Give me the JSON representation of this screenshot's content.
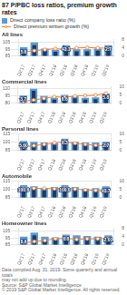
{
  "title": "87 P/PBC loss ratios, premium growth rates",
  "legend": "top",
  "footnote": "Data compiled Aug. 31, 2019. Some quarterly and annual totals\nmay not add up due to rounding.\nSource: S&P Global Market Intelligence\n© 2019 S&P Global Market Intelligence. All rights reserved.",
  "chart_data": [
    {
      "type": "bar",
      "title": "All lines",
      "categories": [
        "Q2'17",
        "Q3'17",
        "Q4'17",
        "Q1'18",
        "Q2'18",
        "Q3'18",
        "Q4'18",
        "Q1'19",
        "Q2'19"
      ],
      "series": [
        {
          "name": "Direct company loss ratio (%)",
          "color": "#5b9bd5",
          "values": [
            98,
            105,
            96,
            94,
            101,
            95,
            95,
            96,
            101
          ]
        },
        {
          "color": "#1f3864",
          "values": [
            94,
            101,
            93,
            91,
            98,
            92,
            92,
            93,
            98
          ]
        },
        {
          "name": "Direct premium written growth (%)",
          "type": "line",
          "axis": "y2",
          "color": "#ed7d31",
          "marker": "circle",
          "values": [
            1.8,
            2.5,
            3.0,
            3.5,
            3.1,
            3.8,
            4.0,
            3.8,
            3.7
          ]
        }
      ],
      "ylim": [
        85,
        110
      ],
      "yticks": [
        85,
        95,
        105
      ],
      "y2lim": [
        0,
        8
      ],
      "y2ticks": [
        0,
        4,
        8
      ],
      "grid": true,
      "annotations": [
        {
          "category": "Q2'17",
          "y": 93.53,
          "text": "5.6"
        },
        {
          "category": "Q2'18",
          "y": 97.51,
          "text": "43.1"
        },
        {
          "category": "Q2'19",
          "y": 97.51,
          "text": "2.7"
        }
      ]
    },
    {
      "type": "bar",
      "title": "Commercial lines",
      "categories": [
        "Q2'17",
        "Q3'17",
        "Q4'17",
        "Q1'18",
        "Q2'18",
        "Q3'18",
        "Q4'18",
        "Q1'19",
        "Q2'19"
      ],
      "series": [
        {
          "name": "Direct company loss ratio (%)",
          "color": "#5b9bd5",
          "values": [
            96,
            110,
            95,
            91,
            97,
            94,
            91,
            92,
            100
          ]
        },
        {
          "color": "#1f3864",
          "values": [
            92,
            106,
            91,
            87,
            93,
            90,
            87,
            88,
            96
          ]
        },
        {
          "name": "Direct premium written growth (%)",
          "type": "line",
          "axis": "y2",
          "color": "#ed7d31",
          "marker": "circle",
          "values": [
            1.0,
            1.8,
            2.8,
            3.8,
            3.5,
            4.2,
            4.5,
            4.8,
            5.8
          ]
        }
      ],
      "ylim": [
        80,
        115
      ],
      "yticks": [
        80,
        95,
        110
      ],
      "y2lim": [
        0,
        10
      ],
      "y2ticks": [
        0,
        5,
        10
      ],
      "grid": true,
      "annotations": [
        {
          "category": "Q2'17",
          "y": 91.54,
          "text": "3.7"
        },
        {
          "category": "Q2'18",
          "y": 92.535,
          "text": "8.6"
        },
        {
          "category": "Q2'19",
          "y": 95.52,
          "text": "5.8"
        }
      ]
    },
    {
      "type": "bar",
      "title": "Personal lines",
      "categories": [
        "Q2'17",
        "Q3'17",
        "Q4'17",
        "Q1'18",
        "Q2'18",
        "Q3'18",
        "Q4'18",
        "Q1'19",
        "Q2'19"
      ],
      "series": [
        {
          "name": "Direct company loss ratio (%)",
          "color": "#5b9bd5",
          "values": [
            102,
            100,
            99,
            98,
            106,
            100,
            99,
            99,
            100
          ]
        },
        {
          "color": "#1f3864",
          "values": [
            98,
            97,
            96,
            95,
            102,
            97,
            96,
            96,
            97
          ]
        },
        {
          "name": "Direct premium written growth (%)",
          "type": "line",
          "axis": "y2",
          "color": "#ed7d31",
          "marker": "circle",
          "values": [
            2.0,
            2.8,
            3.5,
            4.5,
            5.0,
            4.2,
            3.5,
            3.0,
            2.7
          ]
        }
      ],
      "ylim": [
        85,
        115
      ],
      "yticks": [
        85,
        100,
        115
      ],
      "y2lim": [
        0,
        10
      ],
      "y2ticks": [
        0,
        5,
        10
      ],
      "grid": true,
      "annotations": [
        {
          "category": "Q2'17",
          "y": 97.51,
          "text": "5.60"
        },
        {
          "category": "Q2'18",
          "y": 101.49,
          "text": "8.3"
        },
        {
          "category": "Q2'19",
          "y": 96.515,
          "text": "2.7"
        }
      ]
    },
    {
      "type": "bar",
      "title": "Automobile",
      "categories": [
        "Q2'17",
        "Q3'17",
        "Q4'17",
        "Q1'18",
        "Q2'18",
        "Q3'18",
        "Q4'18",
        "Q1'19",
        "Q2'19"
      ],
      "series": [
        {
          "name": "Direct company loss ratio (%)",
          "color": "#5b9bd5",
          "values": [
            107,
            105,
            102,
            104,
            107,
            104,
            101,
            102,
            105
          ]
        },
        {
          "color": "#1f3864",
          "values": [
            103,
            101,
            98,
            100,
            103,
            100,
            97,
            98,
            101
          ]
        },
        {
          "name": "Direct premium written growth (%)",
          "type": "line",
          "axis": "y2",
          "color": "#ed7d31",
          "marker": "circle",
          "values": [
            5.5,
            5.5,
            5.5,
            5.2,
            5.5,
            5.0,
            4.5,
            4.2,
            3.7
          ]
        }
      ],
      "ylim": [
        85,
        115
      ],
      "yticks": [
        85,
        100,
        115
      ],
      "y2lim": [
        0,
        10
      ],
      "y2ticks": [
        0,
        5,
        10
      ],
      "grid": true,
      "annotations": [
        {
          "category": "Q2'17",
          "y": 102.485,
          "text": "100.6"
        },
        {
          "category": "Q2'18",
          "y": 102.485,
          "text": "100.0"
        },
        {
          "category": "Q2'19",
          "y": 100.495,
          "text": "93.7"
        }
      ]
    },
    {
      "type": "bar",
      "title": "Homeowner lines",
      "categories": [
        "Q2'17",
        "Q3'17",
        "Q4'17",
        "Q1'18",
        "Q2'18",
        "Q3'18",
        "Q4'18",
        "Q1'19",
        "Q2'19"
      ],
      "series": [
        {
          "name": "Direct company loss ratio (%)",
          "color": "#5b9bd5",
          "values": [
            97,
            103,
            97,
            96,
            100,
            99,
            98,
            97,
            99
          ]
        },
        {
          "color": "#1f3864",
          "values": [
            93,
            99,
            93,
            92,
            97,
            95,
            95,
            94,
            96
          ]
        },
        {
          "name": "Direct premium written growth (%)",
          "type": "line",
          "axis": "y2",
          "color": "#ed7d31",
          "marker": "circle",
          "values": [
            0.8,
            1.5,
            2.0,
            2.8,
            3.0,
            2.5,
            2.8,
            2.8,
            3.0
          ]
        }
      ],
      "ylim": [
        85,
        110
      ],
      "yticks": [
        85,
        95,
        105
      ],
      "y2lim": [
        0,
        8
      ],
      "y2ticks": [
        0,
        4,
        8
      ],
      "grid": true,
      "annotations": [
        {
          "category": "Q2'17",
          "y": 92.535,
          "text": "8.6"
        },
        {
          "category": "Q2'18",
          "y": 96.515,
          "text": "8.8"
        },
        {
          "category": "Q2'19",
          "y": 95.52,
          "text": "2.01"
        }
      ]
    }
  ]
}
